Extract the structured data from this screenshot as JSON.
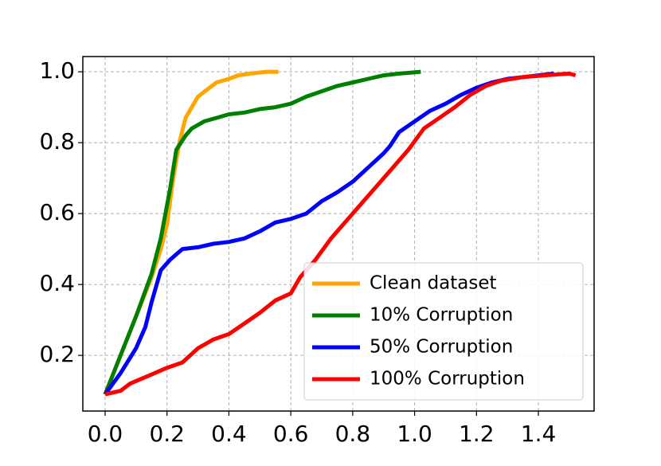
{
  "chart_data": {
    "type": "line",
    "xlim": [
      -0.072,
      1.58
    ],
    "ylim": [
      0.043,
      1.043
    ],
    "xticks": [
      {
        "value": 0,
        "label": "0.0"
      },
      0.2,
      0.4,
      0.6,
      0.8,
      {
        "value": 1,
        "label": "1.0"
      },
      1.2,
      1.4
    ],
    "yticks": [
      0.2,
      0.4,
      0.6,
      0.8,
      {
        "value": 1,
        "label": "1.0"
      }
    ],
    "grid": true,
    "legend": "lower right",
    "series": [
      {
        "name": "Clean dataset",
        "color": "#ffa500",
        "x": [
          0,
          0.05,
          0.1,
          0.15,
          0.18,
          0.2,
          0.22,
          0.24,
          0.26,
          0.28,
          0.3,
          0.33,
          0.36,
          0.4,
          0.43,
          0.47,
          0.52,
          0.56
        ],
        "values": [
          0.09,
          0.2,
          0.31,
          0.42,
          0.5,
          0.57,
          0.7,
          0.8,
          0.87,
          0.9,
          0.93,
          0.95,
          0.97,
          0.98,
          0.99,
          0.995,
          1.0,
          1.0
        ]
      },
      {
        "name": "10% Corruption",
        "color": "#008000",
        "x": [
          0,
          0.05,
          0.1,
          0.15,
          0.18,
          0.21,
          0.23,
          0.26,
          0.28,
          0.32,
          0.36,
          0.4,
          0.45,
          0.5,
          0.55,
          0.6,
          0.65,
          0.7,
          0.75,
          0.8,
          0.85,
          0.9,
          0.95,
          1.02
        ],
        "values": [
          0.09,
          0.2,
          0.31,
          0.43,
          0.53,
          0.67,
          0.78,
          0.82,
          0.84,
          0.86,
          0.87,
          0.88,
          0.885,
          0.895,
          0.9,
          0.91,
          0.93,
          0.945,
          0.96,
          0.97,
          0.98,
          0.99,
          0.995,
          1.0
        ]
      },
      {
        "name": "50% Corruption",
        "color": "#0000ff",
        "x": [
          0,
          0.05,
          0.1,
          0.13,
          0.15,
          0.18,
          0.21,
          0.25,
          0.3,
          0.35,
          0.4,
          0.45,
          0.5,
          0.55,
          0.6,
          0.65,
          0.7,
          0.75,
          0.8,
          0.85,
          0.9,
          0.92,
          0.95,
          1.0,
          1.05,
          1.1,
          1.15,
          1.2,
          1.25,
          1.3,
          1.35,
          1.4,
          1.45
        ],
        "values": [
          0.09,
          0.15,
          0.22,
          0.28,
          0.35,
          0.44,
          0.47,
          0.5,
          0.505,
          0.515,
          0.52,
          0.53,
          0.55,
          0.575,
          0.585,
          0.6,
          0.635,
          0.66,
          0.69,
          0.73,
          0.77,
          0.79,
          0.83,
          0.86,
          0.89,
          0.91,
          0.935,
          0.955,
          0.97,
          0.98,
          0.985,
          0.99,
          0.995
        ]
      },
      {
        "name": "100% Corruption",
        "color": "#ff0000",
        "x": [
          0,
          0.05,
          0.08,
          0.12,
          0.16,
          0.2,
          0.25,
          0.3,
          0.35,
          0.4,
          0.45,
          0.5,
          0.55,
          0.6,
          0.63,
          0.68,
          0.73,
          0.78,
          0.83,
          0.88,
          0.93,
          0.98,
          1.03,
          1.08,
          1.13,
          1.18,
          1.23,
          1.28,
          1.35,
          1.42,
          1.5,
          1.52
        ],
        "values": [
          0.09,
          0.1,
          0.12,
          0.135,
          0.15,
          0.165,
          0.18,
          0.22,
          0.245,
          0.26,
          0.29,
          0.32,
          0.355,
          0.375,
          0.42,
          0.47,
          0.53,
          0.58,
          0.63,
          0.68,
          0.73,
          0.78,
          0.84,
          0.87,
          0.9,
          0.935,
          0.96,
          0.975,
          0.985,
          0.99,
          0.995,
          0.99
        ]
      }
    ]
  }
}
